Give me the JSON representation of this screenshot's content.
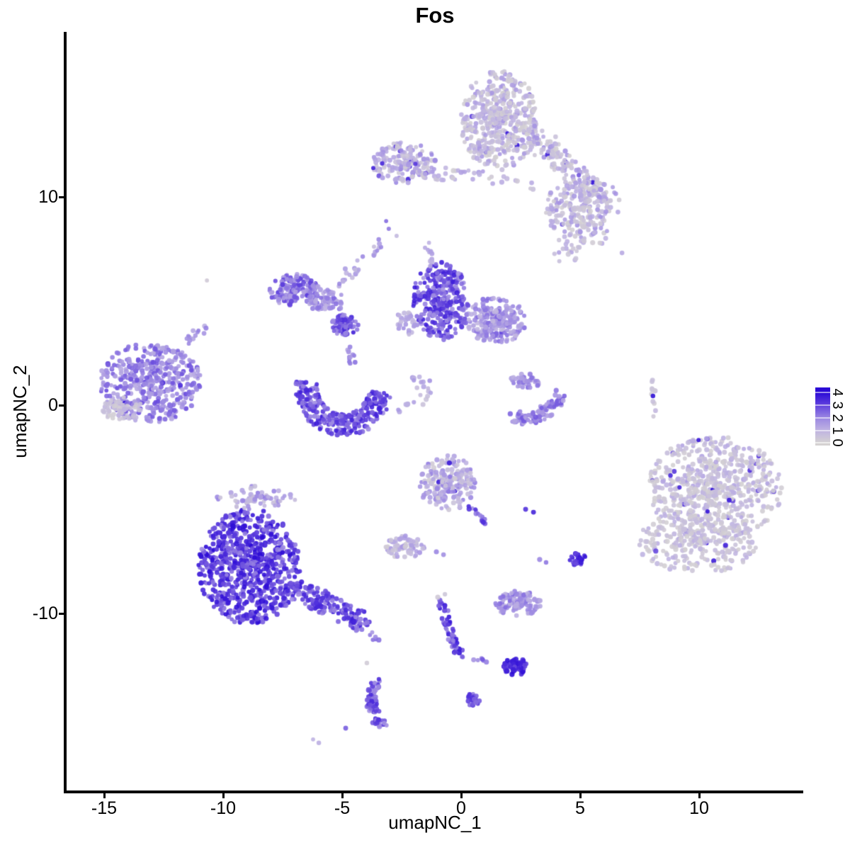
{
  "title": "Fos",
  "axes": {
    "x": {
      "label": "umapNC_1",
      "ticks": [
        {
          "v": -15,
          "label": "-15"
        },
        {
          "v": -10,
          "label": "-10"
        },
        {
          "v": -5,
          "label": "-5"
        },
        {
          "v": 0,
          "label": "0"
        },
        {
          "v": 5,
          "label": "5"
        },
        {
          "v": 10,
          "label": "10"
        }
      ]
    },
    "y": {
      "label": "umapNC_2",
      "ticks": [
        {
          "v": 10,
          "label": "10"
        },
        {
          "v": 0,
          "label": "0"
        },
        {
          "v": -10,
          "label": "-10"
        }
      ]
    }
  },
  "legend": {
    "ticks": [
      {
        "v": 0,
        "label": "0"
      },
      {
        "v": 1,
        "label": "1"
      },
      {
        "v": 2,
        "label": "2"
      },
      {
        "v": 3,
        "label": "3"
      },
      {
        "v": 4,
        "label": "4"
      }
    ],
    "bar_value_range": [
      -0.2,
      4.4
    ]
  },
  "colors": {
    "background": "#ffffff",
    "axis": "#000000",
    "scale_stops": [
      "#D5D2D2",
      "#BFB3E2",
      "#9B87E2",
      "#6142DD",
      "#2B0AD6"
    ]
  },
  "chart_data": {
    "type": "scatter",
    "title": "Fos",
    "xlabel": "umapNC_1",
    "ylabel": "umapNC_2",
    "xlim": [
      -16.6,
      14.4
    ],
    "ylim": [
      -18.6,
      17.9
    ],
    "color_value_range": [
      0,
      4
    ],
    "grid": false,
    "legend_position": "right",
    "point_radius_px": 3.2,
    "clusters": [
      {
        "id": "top-right-main",
        "sh": "blob",
        "x": 1.61,
        "y": 13.67,
        "sx": 1.64,
        "sy": 2.38,
        "n": 460,
        "t": [
          0.02,
          0.42
        ],
        "b": 1.5,
        "df": 0.02
      },
      {
        "id": "top-right-arm",
        "sh": "seg",
        "x1": 2.8,
        "y1": 13.16,
        "x2": 6.37,
        "y2": 9.59,
        "w": 0.5,
        "n": 170,
        "t": [
          0.02,
          0.45
        ],
        "b": 1.3,
        "df": 0.02
      },
      {
        "id": "top-right-lobe",
        "sh": "blob",
        "x": 4.88,
        "y": 9.42,
        "sx": 1.34,
        "sy": 1.43,
        "n": 190,
        "t": [
          0.02,
          0.45
        ],
        "b": 1.3,
        "df": 0.02
      },
      {
        "id": "top-right-below",
        "sh": "blob",
        "x": 4.73,
        "y": 7.72,
        "sx": 0.9,
        "sy": 0.5,
        "n": 16,
        "t": [
          0.02,
          0.35
        ]
      },
      {
        "id": "top-right-sparse",
        "sh": "blob",
        "x": 5.92,
        "y": 8.23,
        "sx": 0.55,
        "sy": 0.55,
        "n": 12,
        "t": [
          0.05,
          0.4
        ]
      },
      {
        "id": "top-center",
        "sh": "blob",
        "x": -2.41,
        "y": 11.63,
        "sx": 1.34,
        "sy": 1.0,
        "n": 175,
        "t": [
          0.05,
          0.5
        ],
        "b": 1.2,
        "df": 0.02
      },
      {
        "id": "top-center-chain",
        "sh": "seg",
        "x1": -1.07,
        "y1": 11.12,
        "x2": 1.46,
        "y2": 10.95,
        "w": 0.3,
        "n": 26,
        "t": [
          0.02,
          0.42
        ]
      },
      {
        "id": "top-center-chain2",
        "sh": "seg",
        "x1": 1.46,
        "y1": 10.78,
        "x2": 3.1,
        "y2": 10.54,
        "w": 0.25,
        "n": 9,
        "t": [
          0.05,
          0.35
        ]
      },
      {
        "id": "arc-northwest",
        "sh": "blob",
        "x": -7.02,
        "y": 5.51,
        "sx": 1.05,
        "sy": 0.78,
        "n": 155,
        "t": [
          0.3,
          0.8
        ]
      },
      {
        "id": "arc-northwest2",
        "sh": "blob",
        "x": -5.68,
        "y": 5.0,
        "sx": 0.75,
        "sy": 0.6,
        "n": 70,
        "t": [
          0.25,
          0.62
        ]
      },
      {
        "id": "arc-trail",
        "sh": "seg",
        "x1": -5.39,
        "y1": 5.68,
        "x2": -3.3,
        "y2": 7.72,
        "w": 0.28,
        "n": 26,
        "t": [
          0.15,
          0.5
        ]
      },
      {
        "id": "star-blob",
        "sh": "blob",
        "x": -4.88,
        "y": 3.81,
        "sx": 0.56,
        "sy": 0.56,
        "n": 75,
        "t": [
          0.45,
          0.9
        ]
      },
      {
        "id": "star-chain",
        "sh": "seg",
        "x1": -4.79,
        "y1": 2.79,
        "x2": -4.35,
        "y2": 1.77,
        "w": 0.18,
        "n": 12,
        "t": [
          0.3,
          0.6
        ]
      },
      {
        "id": "central-crescent",
        "sh": "arc",
        "x": -4.94,
        "y": 0.82,
        "rx": 1.55,
        "ry": 1.77,
        "a1": 170,
        "a2": 353,
        "th": 0.3,
        "n": 280,
        "t": [
          0.45,
          0.92
        ],
        "b": 0.8
      },
      {
        "id": "crescent-tail",
        "sh": "seg",
        "x1": -2.71,
        "y1": -0.44,
        "x2": -1.25,
        "y2": 0.58,
        "w": 0.2,
        "n": 13,
        "t": [
          0.1,
          0.4
        ]
      },
      {
        "id": "mid-left-lobe",
        "sh": "blob",
        "x": -0.86,
        "y": 5.0,
        "sx": 1.19,
        "sy": 1.87,
        "n": 320,
        "t": [
          0.4,
          0.92
        ],
        "b": 0.85,
        "df": 0.05
      },
      {
        "id": "mid-right-lobe",
        "sh": "blob",
        "x": 1.46,
        "y": 4.08,
        "sx": 1.28,
        "sy": 1.12,
        "n": 235,
        "t": [
          0.2,
          0.62
        ],
        "df": 0.02
      },
      {
        "id": "mid-bridge",
        "sh": "blob",
        "x": -2.26,
        "y": 3.98,
        "sx": 0.5,
        "sy": 0.6,
        "n": 28,
        "t": [
          0.15,
          0.45
        ]
      },
      {
        "id": "mid-chain-up",
        "sh": "seg",
        "x1": -1.52,
        "y1": 7.89,
        "x2": -1.22,
        "y2": 6.63,
        "w": 0.15,
        "n": 10,
        "t": [
          0.2,
          0.5
        ]
      },
      {
        "id": "midright-blob",
        "sh": "blob",
        "x": 2.71,
        "y": 1.16,
        "sx": 0.65,
        "sy": 0.35,
        "n": 45,
        "t": [
          0.25,
          0.6
        ]
      },
      {
        "id": "midright-band",
        "sh": "quad",
        "x1": 2.26,
        "y1": -0.54,
        "qx": 3.24,
        "qy": -0.95,
        "x2": 4.2,
        "y2": 0.48,
        "w": 0.3,
        "n": 95,
        "t": [
          0.3,
          0.68
        ]
      },
      {
        "id": "right-streak",
        "sh": "seg",
        "x1": 8.04,
        "y1": 1.43,
        "x2": 8.15,
        "y2": -0.71,
        "w": 0.1,
        "n": 11,
        "t": [
          0.02,
          0.25
        ]
      },
      {
        "id": "left-main",
        "sh": "blob",
        "x": -13.07,
        "y": 1.09,
        "sx": 2.14,
        "sy": 1.94,
        "n": 450,
        "t": [
          0.28,
          0.72
        ],
        "df": 0.015
      },
      {
        "id": "left-gray-pocket",
        "sh": "blob",
        "x": -14.2,
        "y": -0.2,
        "sx": 0.85,
        "sy": 0.6,
        "n": 55,
        "t": [
          0.02,
          0.25
        ]
      },
      {
        "id": "left-arm",
        "sh": "seg",
        "x1": -11.58,
        "y1": 2.93,
        "x2": -10.8,
        "y2": 3.74,
        "w": 0.2,
        "n": 13,
        "t": [
          0.25,
          0.55
        ]
      },
      {
        "id": "right-main",
        "sh": "blob",
        "x": 10.68,
        "y": -4.01,
        "sx": 2.83,
        "sy": 2.55,
        "n": 640,
        "t": [
          0.02,
          0.34
        ],
        "b": 1.6,
        "df": 0.03
      },
      {
        "id": "right-lower",
        "sh": "blob",
        "x": 9.94,
        "y": -6.56,
        "sx": 2.53,
        "sy": 1.53,
        "n": 265,
        "t": [
          0.02,
          0.3
        ],
        "b": 1.7,
        "df": 0.02
      },
      {
        "id": "bottomleft-core",
        "sh": "blob",
        "x": -8.9,
        "y": -7.76,
        "sx": 2.14,
        "sy": 2.79,
        "n": 780,
        "t": [
          0.45,
          1.0
        ],
        "b": 0.7
      },
      {
        "id": "bottomleft-tail",
        "sh": "seg",
        "x1": -7.02,
        "y1": -8.78,
        "x2": -4.05,
        "y2": -10.54,
        "w": 0.45,
        "n": 175,
        "t": [
          0.45,
          0.92
        ],
        "b": 0.85
      },
      {
        "id": "bottomleft-fringe",
        "sh": "blob",
        "x": -8.63,
        "y": -4.42,
        "sx": 1.7,
        "sy": 0.55,
        "n": 65,
        "t": [
          0.08,
          0.55
        ]
      },
      {
        "id": "bottomleft-tip",
        "sh": "seg",
        "x1": -4.0,
        "y1": -10.7,
        "x2": -3.45,
        "y2": -11.3,
        "w": 0.15,
        "n": 6,
        "t": [
          0.4,
          0.7
        ]
      },
      {
        "id": "bottomcenter-main",
        "sh": "blob",
        "x": -0.57,
        "y": -3.74,
        "sx": 1.19,
        "sy": 1.33,
        "n": 215,
        "t": [
          0.03,
          0.55
        ],
        "b": 1.15,
        "df": 0.02
      },
      {
        "id": "bottomcenter-tail",
        "sh": "seg",
        "x1": 0.27,
        "y1": -4.86,
        "x2": 1.1,
        "y2": -5.61,
        "w": 0.15,
        "n": 14,
        "t": [
          0.4,
          0.85
        ]
      },
      {
        "id": "bottom-small-left",
        "sh": "blob",
        "x": -2.35,
        "y": -6.8,
        "sx": 0.83,
        "sy": 0.54,
        "n": 75,
        "t": [
          0.03,
          0.42
        ]
      },
      {
        "id": "small-blue-blob",
        "sh": "blob",
        "x": 4.94,
        "y": -7.41,
        "sx": 0.4,
        "sy": 0.3,
        "n": 28,
        "t": [
          0.7,
          1.0
        ]
      },
      {
        "id": "bottom-mid-oval",
        "sh": "blob",
        "x": 2.38,
        "y": -9.52,
        "sx": 0.98,
        "sy": 0.6,
        "n": 118,
        "t": [
          0.25,
          0.6
        ]
      },
      {
        "id": "streak-down",
        "sh": "quad",
        "x1": -0.83,
        "y1": -9.39,
        "qx": -0.45,
        "qy": -11.22,
        "x2": -0.03,
        "y2": -12.01,
        "w": 0.16,
        "n": 58,
        "t": [
          0.5,
          0.95
        ]
      },
      {
        "id": "streak-bridge",
        "sh": "seg",
        "x1": 0.36,
        "y1": -12.11,
        "x2": 1.16,
        "y2": -12.28,
        "w": 0.1,
        "n": 6,
        "t": [
          0.4,
          0.7
        ]
      },
      {
        "id": "deep-blue-blob",
        "sh": "blob",
        "x": 2.26,
        "y": -12.55,
        "sx": 0.5,
        "sy": 0.44,
        "n": 68,
        "t": [
          0.72,
          1.0
        ]
      },
      {
        "id": "bottom-crescent",
        "sh": "quad",
        "x1": -3.57,
        "y1": -13.27,
        "qx": -4.08,
        "qy": -14.39,
        "x2": -3.27,
        "y2": -15.44,
        "w": 0.2,
        "n": 82,
        "t": [
          0.45,
          0.9
        ]
      },
      {
        "id": "tiny-bottom",
        "sh": "blob",
        "x": 0.51,
        "y": -14.15,
        "sx": 0.3,
        "sy": 0.33,
        "n": 22,
        "t": [
          0.55,
          0.9
        ]
      },
      {
        "id": "connective-sparse",
        "sh": "blob",
        "x": -1.64,
        "y": 1.16,
        "sx": 0.45,
        "sy": 0.5,
        "n": 10,
        "t": [
          0.15,
          0.45
        ]
      },
      {
        "id": "under-topright-sparse",
        "sh": "blob",
        "x": 4.43,
        "y": 7.21,
        "sx": 0.8,
        "sy": 0.35,
        "n": 10,
        "t": [
          0.05,
          0.35
        ]
      }
    ],
    "singles": [
      [
        -3.69,
        11.39,
        0.9
      ],
      [
        -3.15,
        8.84,
        0.6
      ],
      [
        -3.04,
        8.47,
        0.55
      ],
      [
        -2.71,
        8.13,
        0.2
      ],
      [
        6.76,
        7.31,
        0.3
      ],
      [
        -10.68,
        5.99,
        0.07
      ],
      [
        8.06,
        0.44,
        0.97
      ],
      [
        2.71,
        -5.0,
        0.82
      ],
      [
        3.04,
        -5.14,
        0.88
      ],
      [
        3.3,
        -7.41,
        0.5
      ],
      [
        3.57,
        -7.55,
        0.55
      ],
      [
        -1.04,
        -7.04,
        0.5
      ],
      [
        -0.74,
        -7.18,
        0.45
      ],
      [
        -0.98,
        -9.22,
        0.07
      ],
      [
        -0.68,
        -9.08,
        0.1
      ],
      [
        -3.96,
        -12.38,
        0.06
      ],
      [
        -4.85,
        -15.51,
        0.65
      ],
      [
        -6.22,
        -16.05,
        0.25
      ],
      [
        -5.98,
        -16.22,
        0.28
      ]
    ]
  }
}
